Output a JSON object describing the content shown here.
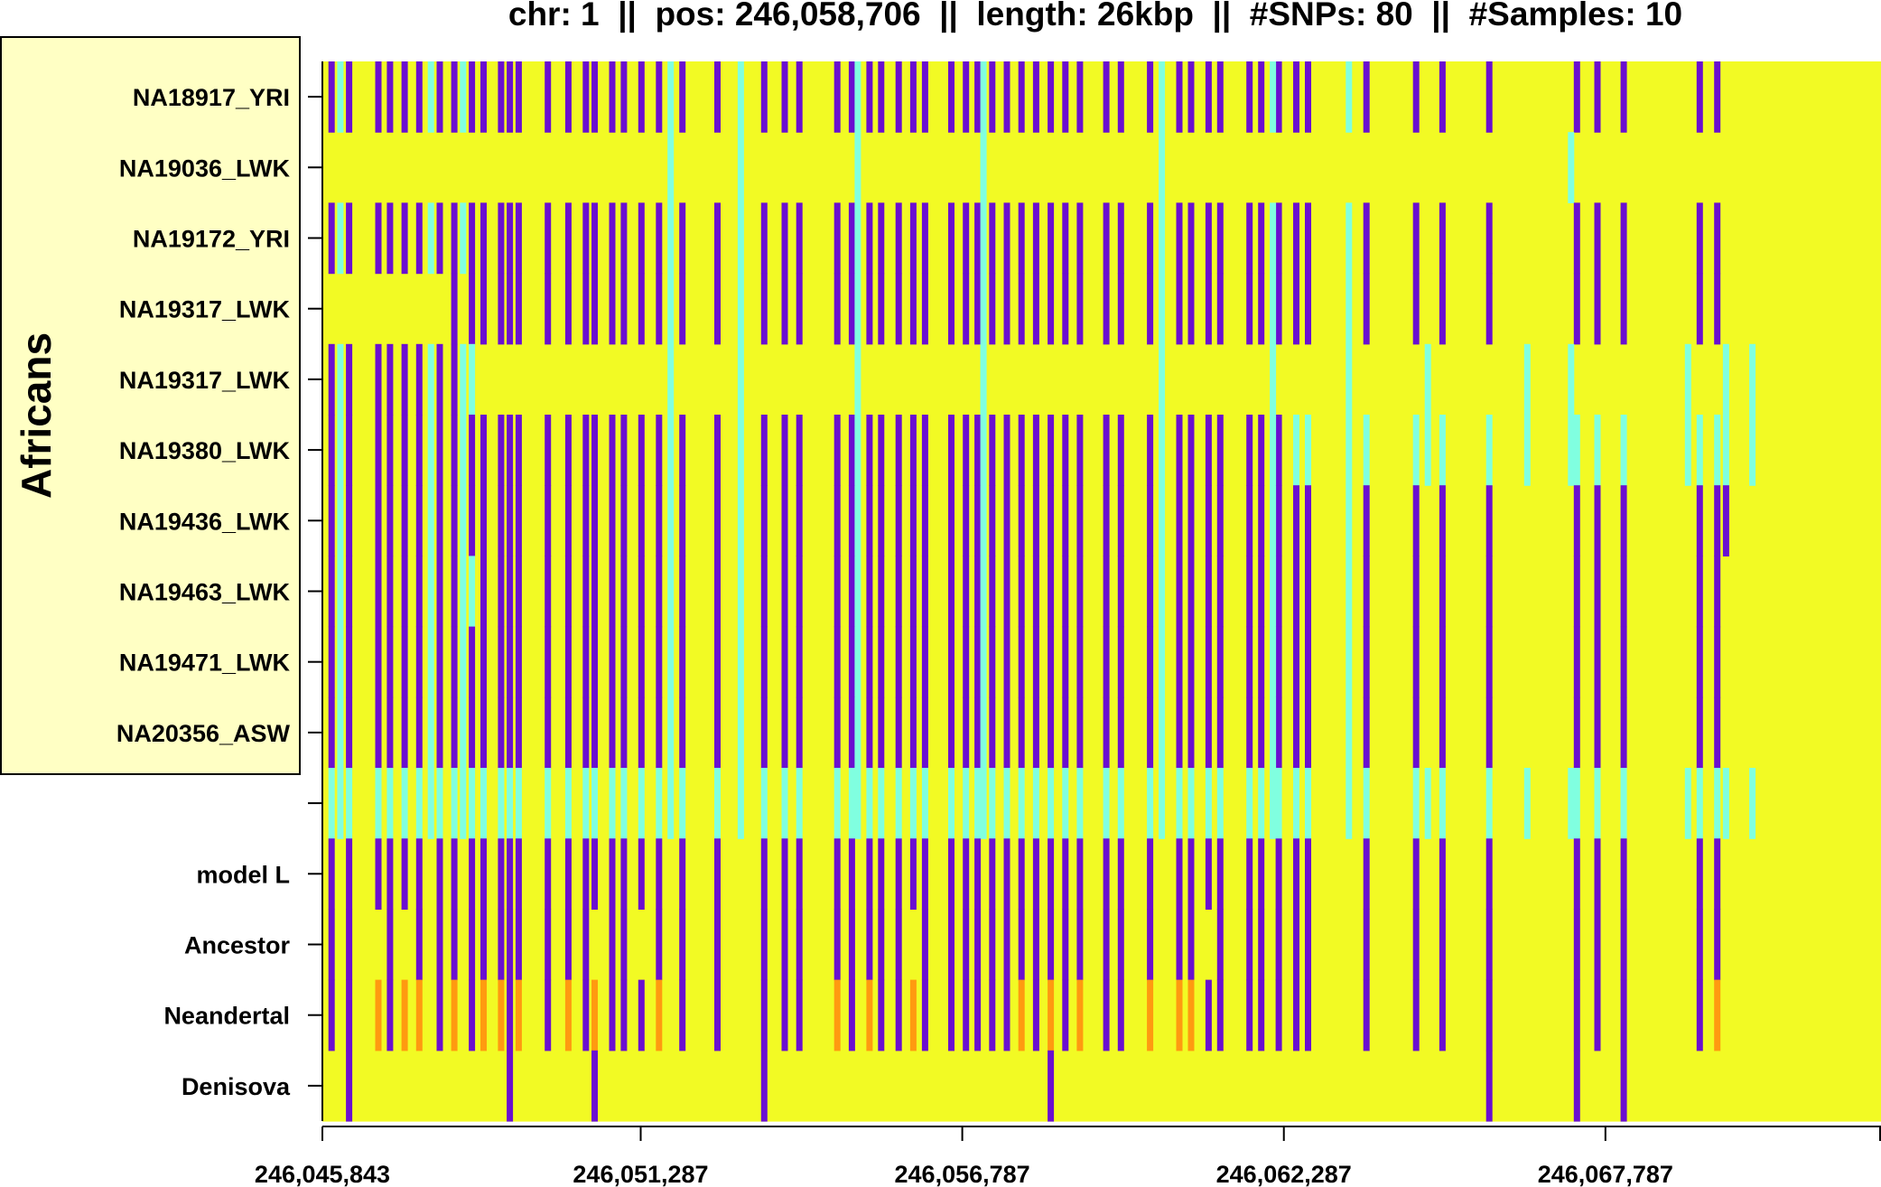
{
  "colors": {
    "derived": "#6A0FD0",
    "ancestral": "#F2FA24",
    "heterozygous": "#80FFE0",
    "neandertal_specific": "#FF9A10",
    "group_box_fill": "#FFFFC4",
    "axis": "#000000"
  },
  "chart_data": {
    "type": "heatmap",
    "title": "chr: 1  ||  pos: 246,058,706  ||  length: 26kbp  ||  #SNPs: 80  ||  #Samples: 10",
    "group_label": "Africans",
    "xlabel": "",
    "ylabel": "",
    "xlim": [
      246045843,
      246072500
    ],
    "rows": [
      "NA18917_YRI",
      "NA19036_LWK",
      "NA19172_YRI",
      "NA19317_LWK",
      "NA19317_LWK",
      "NA19380_LWK",
      "NA19436_LWK",
      "NA19463_LWK",
      "NA19471_LWK",
      "NA20356_ASW",
      "",
      "model L",
      "Ancestor",
      "Neandertal",
      "Denisova"
    ],
    "x_ticks": [
      246045843,
      246051287,
      246056787,
      246062287,
      246067787
    ],
    "x_tick_labels": [
      "246,045,843",
      "246,051,287",
      "246,056,787",
      "246,062,287",
      "246,067,787"
    ],
    "snp_positions": [
      246046000,
      246046300,
      246046800,
      246047000,
      246047250,
      246047500,
      246047850,
      246048100,
      246048400,
      246048600,
      246048900,
      246049050,
      246049200,
      246049700,
      246050050,
      246050350,
      246050500,
      246050800,
      246051000,
      246051300,
      246051600,
      246052000,
      246052600,
      246053400,
      246053750,
      246054000,
      246054650,
      246054900,
      246055200,
      246055400,
      246055700,
      246055950,
      246056150,
      246056600,
      246056850,
      246057050,
      246057300,
      246057550,
      246057800,
      246058050,
      246058300,
      246058550,
      246058800,
      246059250,
      246059500,
      246060000,
      246060500,
      246060700,
      246061000,
      246061200,
      246061700,
      246061900,
      246062200,
      246062500,
      246062700,
      246063700,
      246064550,
      246065000,
      246065800,
      246067300,
      246067650,
      246068100,
      246069400,
      246069700,
      246046150,
      246047700,
      246048250,
      246051800,
      246053000,
      246055000,
      246057150,
      246060200,
      246062100,
      246063400,
      246064750,
      246066450,
      246067200,
      246069200,
      246069850,
      246070300
    ],
    "matrix": [
      [
        1,
        1,
        1,
        1,
        1,
        1,
        1,
        1,
        1,
        1,
        1,
        1,
        1,
        1,
        1,
        1,
        1,
        1,
        1,
        1,
        1,
        1,
        1,
        1,
        1,
        1,
        1,
        1,
        1,
        1,
        1,
        1,
        1,
        1,
        1,
        1,
        1,
        1,
        1,
        1,
        1,
        1,
        1,
        1,
        1,
        1,
        1,
        1,
        1,
        1,
        1,
        1,
        1,
        1,
        1,
        1,
        1,
        1,
        1,
        1,
        1,
        1,
        1,
        1,
        2,
        2,
        2,
        2,
        2,
        2,
        2,
        2,
        2,
        2,
        0,
        0,
        0,
        0,
        0,
        0
      ],
      [
        0,
        0,
        0,
        0,
        0,
        0,
        0,
        0,
        0,
        0,
        0,
        0,
        0,
        0,
        0,
        0,
        0,
        0,
        0,
        0,
        0,
        0,
        0,
        0,
        0,
        0,
        0,
        0,
        0,
        0,
        0,
        0,
        0,
        0,
        0,
        0,
        0,
        0,
        0,
        0,
        0,
        0,
        0,
        0,
        0,
        0,
        0,
        0,
        0,
        0,
        0,
        0,
        0,
        0,
        0,
        0,
        0,
        0,
        0,
        0,
        0,
        0,
        0,
        0,
        0,
        0,
        0,
        2,
        2,
        2,
        2,
        2,
        0,
        0,
        0,
        0,
        2,
        0,
        0,
        0
      ],
      [
        1,
        1,
        1,
        1,
        1,
        1,
        1,
        1,
        1,
        1,
        1,
        1,
        1,
        1,
        1,
        1,
        1,
        1,
        1,
        1,
        1,
        1,
        1,
        1,
        1,
        1,
        1,
        1,
        1,
        1,
        1,
        1,
        1,
        1,
        1,
        1,
        1,
        1,
        1,
        1,
        1,
        1,
        1,
        1,
        1,
        1,
        1,
        1,
        1,
        1,
        1,
        1,
        1,
        1,
        1,
        1,
        1,
        1,
        1,
        1,
        1,
        1,
        1,
        1,
        2,
        2,
        2,
        2,
        2,
        2,
        2,
        2,
        2,
        2,
        0,
        0,
        0,
        0,
        0,
        0
      ],
      [
        0,
        0,
        0,
        0,
        0,
        0,
        0,
        1,
        1,
        1,
        1,
        1,
        1,
        1,
        1,
        1,
        1,
        1,
        1,
        1,
        1,
        1,
        1,
        1,
        1,
        1,
        1,
        1,
        1,
        1,
        1,
        1,
        1,
        1,
        1,
        1,
        1,
        1,
        1,
        1,
        1,
        1,
        1,
        1,
        1,
        1,
        1,
        1,
        1,
        1,
        1,
        1,
        1,
        1,
        1,
        1,
        1,
        1,
        1,
        1,
        1,
        1,
        1,
        1,
        0,
        0,
        0,
        2,
        2,
        2,
        2,
        2,
        2,
        2,
        0,
        0,
        0,
        0,
        0,
        0
      ],
      [
        1,
        1,
        1,
        1,
        1,
        1,
        1,
        1,
        2,
        0,
        0,
        0,
        0,
        0,
        0,
        0,
        0,
        0,
        0,
        0,
        0,
        0,
        0,
        0,
        0,
        0,
        0,
        0,
        0,
        0,
        0,
        0,
        0,
        0,
        0,
        0,
        0,
        0,
        0,
        0,
        0,
        0,
        0,
        0,
        0,
        0,
        0,
        0,
        0,
        0,
        0,
        0,
        0,
        0,
        0,
        0,
        0,
        0,
        0,
        0,
        0,
        0,
        0,
        0,
        2,
        2,
        2,
        2,
        2,
        2,
        2,
        2,
        2,
        2,
        2,
        2,
        2,
        2,
        2,
        2
      ],
      [
        1,
        1,
        1,
        1,
        1,
        1,
        1,
        1,
        1,
        1,
        1,
        1,
        1,
        1,
        1,
        1,
        1,
        1,
        1,
        1,
        1,
        1,
        1,
        1,
        1,
        1,
        1,
        1,
        1,
        1,
        1,
        1,
        1,
        1,
        1,
        1,
        1,
        1,
        1,
        1,
        1,
        1,
        1,
        1,
        1,
        1,
        1,
        1,
        1,
        1,
        1,
        1,
        1,
        2,
        2,
        2,
        2,
        2,
        2,
        2,
        2,
        2,
        2,
        2,
        2,
        2,
        2,
        2,
        2,
        2,
        2,
        2,
        2,
        2,
        2,
        2,
        2,
        2,
        2,
        2
      ],
      [
        1,
        1,
        1,
        1,
        1,
        1,
        1,
        1,
        1,
        1,
        1,
        1,
        1,
        1,
        1,
        1,
        1,
        1,
        1,
        1,
        1,
        1,
        1,
        1,
        1,
        1,
        1,
        1,
        1,
        1,
        1,
        1,
        1,
        1,
        1,
        1,
        1,
        1,
        1,
        1,
        1,
        1,
        1,
        1,
        1,
        1,
        1,
        1,
        1,
        1,
        1,
        1,
        1,
        1,
        1,
        1,
        1,
        1,
        1,
        1,
        1,
        1,
        1,
        1,
        2,
        2,
        2,
        2,
        2,
        2,
        2,
        2,
        2,
        2,
        0,
        0,
        0,
        0,
        1,
        0
      ],
      [
        1,
        1,
        1,
        1,
        1,
        1,
        1,
        1,
        2,
        1,
        1,
        1,
        1,
        1,
        1,
        1,
        1,
        1,
        1,
        1,
        1,
        1,
        1,
        1,
        1,
        1,
        1,
        1,
        1,
        1,
        1,
        1,
        1,
        1,
        1,
        1,
        1,
        1,
        1,
        1,
        1,
        1,
        1,
        1,
        1,
        1,
        1,
        1,
        1,
        1,
        1,
        1,
        1,
        1,
        1,
        1,
        1,
        1,
        1,
        1,
        1,
        1,
        1,
        1,
        2,
        2,
        2,
        2,
        2,
        2,
        2,
        2,
        2,
        2,
        0,
        0,
        0,
        0,
        0,
        0
      ],
      [
        1,
        1,
        1,
        1,
        1,
        1,
        1,
        1,
        1,
        1,
        1,
        1,
        1,
        1,
        1,
        1,
        1,
        1,
        1,
        1,
        1,
        1,
        1,
        1,
        1,
        1,
        1,
        1,
        1,
        1,
        1,
        1,
        1,
        1,
        1,
        1,
        1,
        1,
        1,
        1,
        1,
        1,
        1,
        1,
        1,
        1,
        1,
        1,
        1,
        1,
        1,
        1,
        1,
        1,
        1,
        1,
        1,
        1,
        1,
        1,
        1,
        1,
        1,
        1,
        2,
        2,
        2,
        2,
        2,
        2,
        2,
        2,
        2,
        2,
        0,
        0,
        0,
        0,
        0,
        0
      ],
      [
        1,
        1,
        1,
        1,
        1,
        1,
        1,
        1,
        1,
        1,
        1,
        1,
        1,
        1,
        1,
        1,
        1,
        1,
        1,
        1,
        1,
        1,
        1,
        1,
        1,
        1,
        1,
        1,
        1,
        1,
        1,
        1,
        1,
        1,
        1,
        1,
        1,
        1,
        1,
        1,
        1,
        1,
        1,
        1,
        1,
        1,
        1,
        1,
        1,
        1,
        1,
        1,
        1,
        1,
        1,
        1,
        1,
        1,
        1,
        1,
        1,
        1,
        1,
        1,
        2,
        2,
        2,
        2,
        2,
        2,
        2,
        2,
        2,
        2,
        0,
        0,
        0,
        0,
        0,
        0
      ],
      [
        2,
        2,
        2,
        2,
        2,
        2,
        2,
        2,
        2,
        2,
        2,
        2,
        2,
        2,
        2,
        2,
        2,
        2,
        2,
        2,
        2,
        2,
        2,
        2,
        2,
        2,
        2,
        2,
        2,
        2,
        2,
        2,
        2,
        2,
        2,
        2,
        2,
        2,
        2,
        2,
        2,
        2,
        2,
        2,
        2,
        2,
        2,
        2,
        2,
        2,
        2,
        2,
        2,
        2,
        2,
        2,
        2,
        2,
        2,
        2,
        2,
        2,
        2,
        2,
        2,
        2,
        2,
        2,
        2,
        2,
        2,
        2,
        2,
        2,
        2,
        2,
        2,
        2,
        2,
        2
      ],
      [
        1,
        1,
        1,
        1,
        1,
        1,
        1,
        1,
        1,
        1,
        1,
        1,
        1,
        1,
        1,
        1,
        1,
        1,
        1,
        1,
        1,
        1,
        1,
        1,
        1,
        1,
        1,
        1,
        1,
        1,
        1,
        1,
        1,
        1,
        1,
        1,
        1,
        1,
        1,
        1,
        1,
        1,
        1,
        1,
        1,
        1,
        1,
        1,
        1,
        1,
        1,
        1,
        1,
        1,
        1,
        1,
        1,
        1,
        1,
        1,
        1,
        1,
        1,
        1,
        0,
        0,
        0,
        0,
        0,
        0,
        0,
        0,
        0,
        0,
        0,
        0,
        0,
        0,
        0,
        0
      ],
      [
        1,
        1,
        0,
        1,
        0,
        1,
        1,
        1,
        1,
        1,
        1,
        1,
        1,
        1,
        1,
        1,
        0,
        1,
        1,
        0,
        1,
        1,
        1,
        1,
        1,
        1,
        1,
        1,
        1,
        1,
        1,
        0,
        1,
        1,
        1,
        1,
        1,
        1,
        1,
        1,
        1,
        1,
        1,
        1,
        1,
        1,
        1,
        1,
        0,
        1,
        1,
        1,
        1,
        1,
        1,
        1,
        1,
        1,
        1,
        1,
        1,
        1,
        1,
        1,
        0,
        0,
        0,
        0,
        0,
        0,
        0,
        0,
        0,
        0,
        0,
        0,
        0,
        0,
        0,
        0
      ],
      [
        1,
        1,
        3,
        1,
        3,
        3,
        1,
        3,
        1,
        3,
        3,
        1,
        3,
        1,
        3,
        1,
        3,
        1,
        1,
        1,
        3,
        1,
        1,
        1,
        1,
        1,
        3,
        1,
        3,
        1,
        1,
        3,
        1,
        1,
        1,
        1,
        1,
        1,
        3,
        1,
        3,
        1,
        3,
        1,
        1,
        3,
        3,
        3,
        1,
        1,
        1,
        1,
        1,
        1,
        1,
        1,
        1,
        1,
        1,
        1,
        1,
        1,
        1,
        3,
        0,
        0,
        0,
        0,
        0,
        0,
        0,
        0,
        0,
        0,
        0,
        0,
        0,
        0,
        0,
        0
      ],
      [
        0,
        1,
        0,
        0,
        0,
        0,
        0,
        0,
        0,
        0,
        0,
        1,
        0,
        0,
        0,
        0,
        1,
        0,
        0,
        0,
        0,
        0,
        0,
        1,
        0,
        0,
        0,
        0,
        0,
        0,
        0,
        0,
        0,
        0,
        0,
        0,
        0,
        0,
        0,
        0,
        1,
        0,
        0,
        0,
        0,
        0,
        0,
        0,
        0,
        0,
        0,
        0,
        0,
        0,
        0,
        0,
        0,
        0,
        1,
        1,
        0,
        1,
        0,
        0,
        0,
        0,
        0,
        0,
        0,
        0,
        0,
        0,
        0,
        0,
        0,
        0,
        0,
        0,
        0,
        0
      ]
    ]
  }
}
